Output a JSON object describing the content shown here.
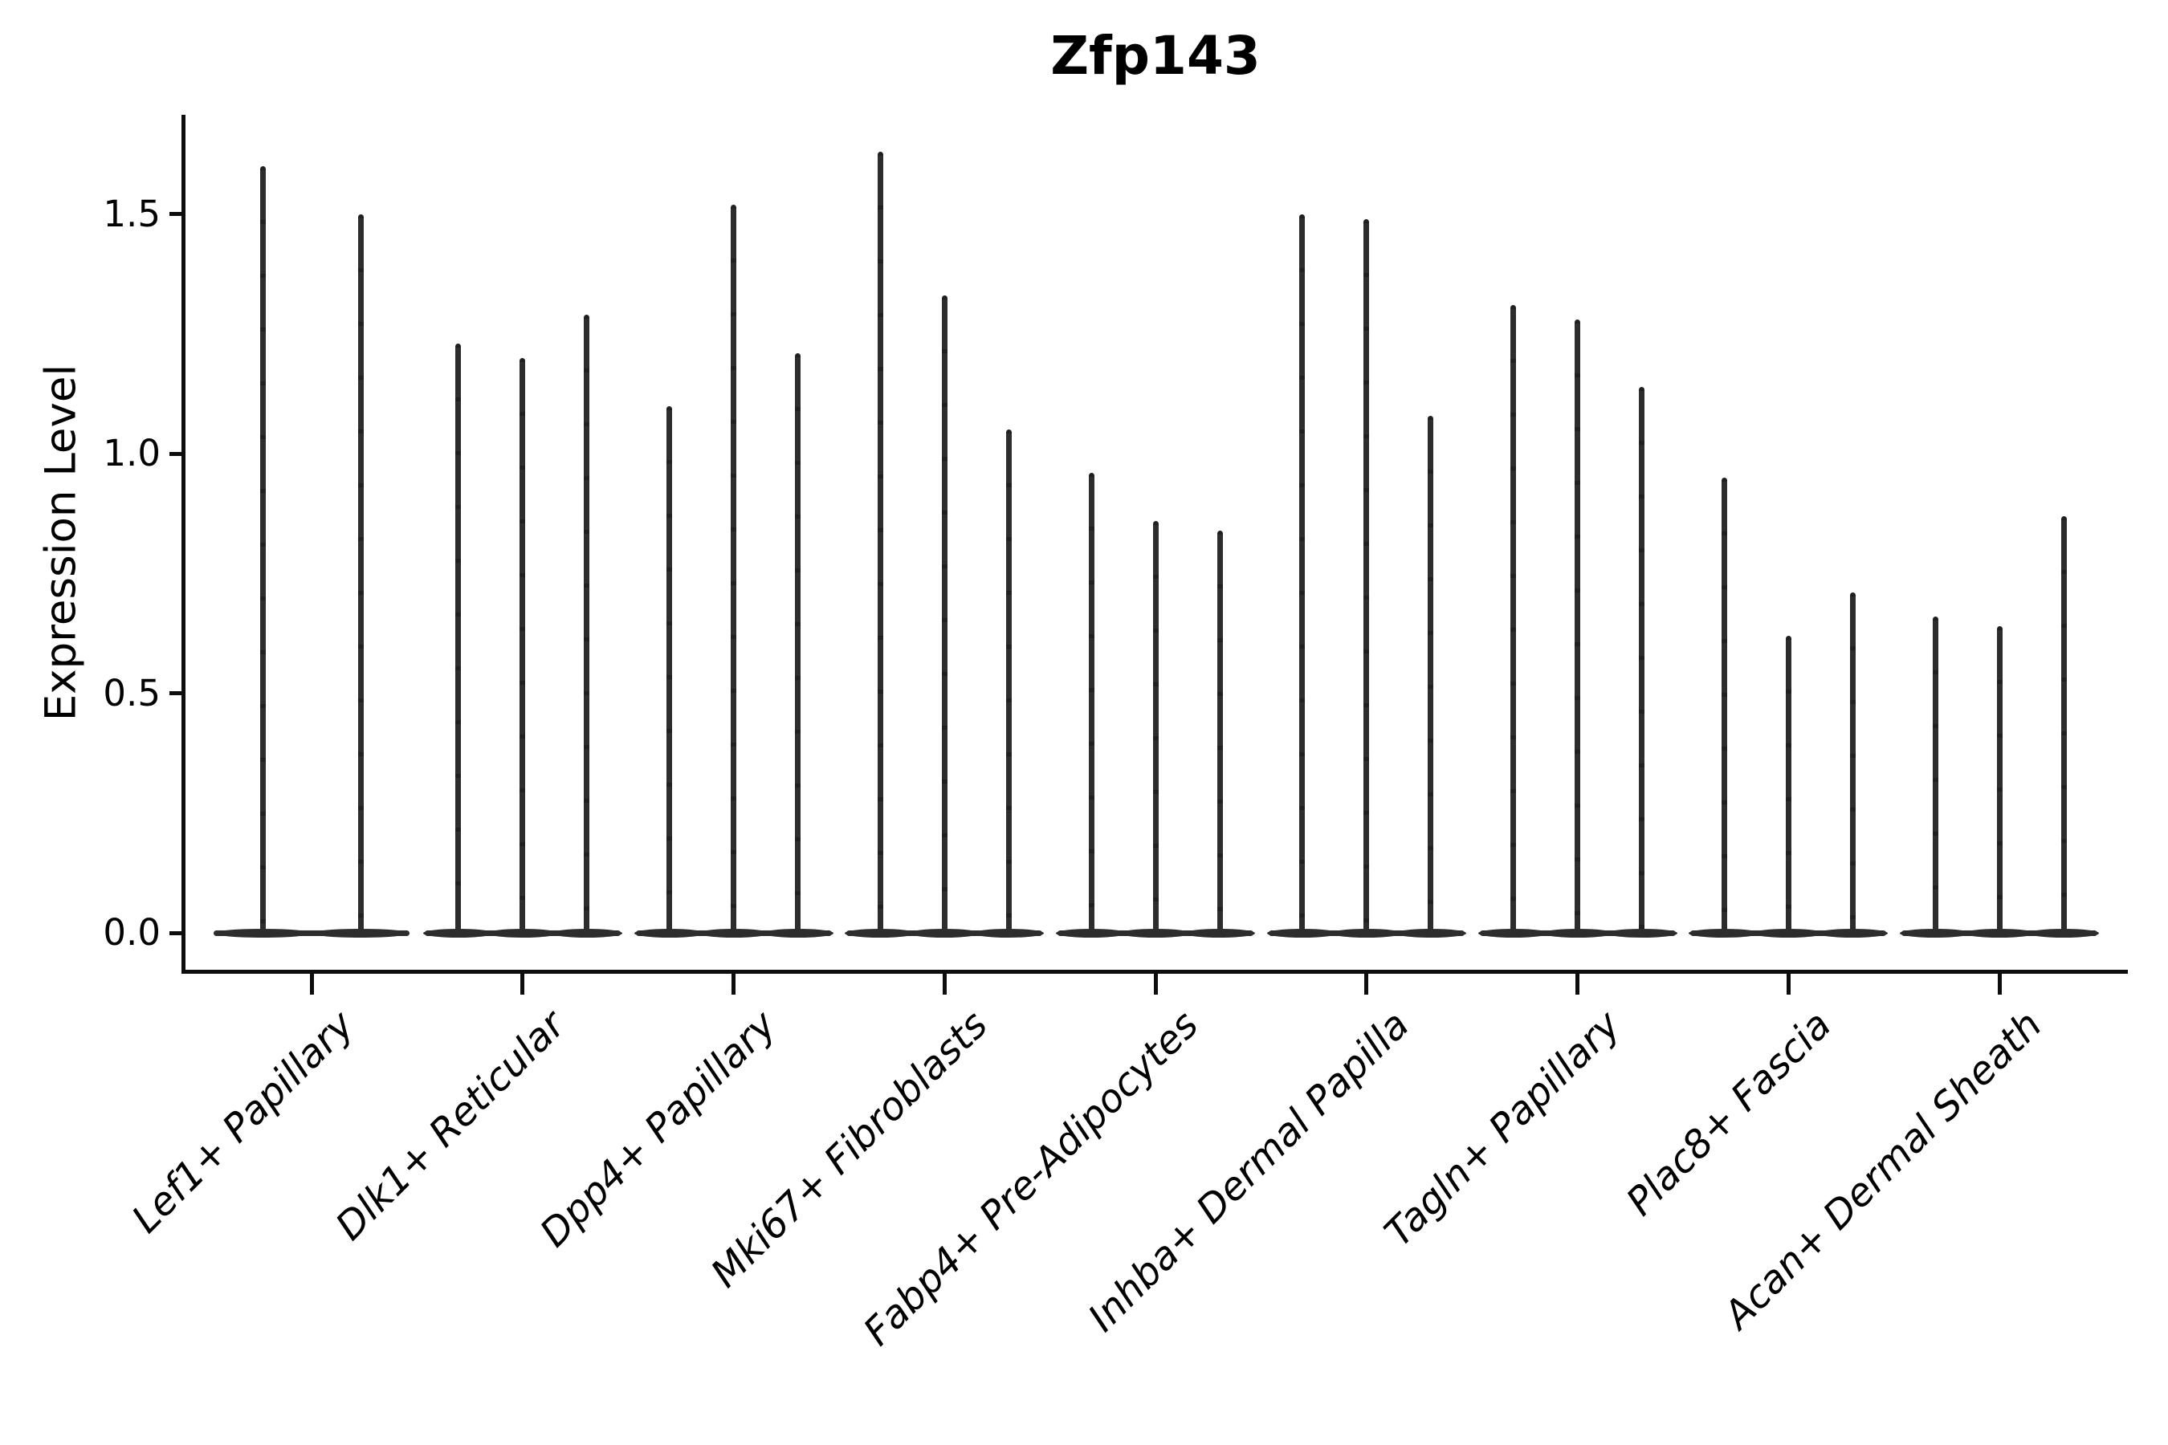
{
  "chart_data": {
    "type": "violin",
    "title": "Zfp143",
    "ylabel": "Expression Level",
    "xlabel": "",
    "grid": false,
    "legend": null,
    "ylim": [
      -0.08,
      1.71
    ],
    "yticks": [
      0.0,
      0.5,
      1.0,
      1.5
    ],
    "ytick_labels": [
      "0.0",
      "0.5",
      "1.0",
      "1.5"
    ],
    "categories": [
      "Lef1+ Papillary",
      "Dlk1+ Reticular",
      "Dpp4+ Papillary",
      "Mki67+ Fibroblasts",
      "Fabp4+ Pre-Adipocytes",
      "Inhba+ Dermal Papilla",
      "Tagln+ Papillary",
      "Plac8+ Fascia",
      "Acan+ Dermal Sheath"
    ],
    "series": [
      {
        "category": "Lef1+ Papillary",
        "violin_peaks": [
          1.6,
          1.5
        ]
      },
      {
        "category": "Dlk1+ Reticular",
        "violin_peaks": [
          1.23,
          1.2,
          1.29
        ]
      },
      {
        "category": "Dpp4+ Papillary",
        "violin_peaks": [
          1.1,
          1.52,
          1.21
        ]
      },
      {
        "category": "Mki67+ Fibroblasts",
        "violin_peaks": [
          1.63,
          1.33,
          1.05
        ]
      },
      {
        "category": "Fabp4+ Pre-Adipocytes",
        "violin_peaks": [
          0.96,
          0.86,
          0.84
        ]
      },
      {
        "category": "Inhba+ Dermal Papilla",
        "violin_peaks": [
          1.5,
          1.49,
          1.08
        ]
      },
      {
        "category": "Tagln+ Papillary",
        "violin_peaks": [
          1.31,
          1.28,
          1.14
        ]
      },
      {
        "category": "Plac8+ Fascia",
        "violin_peaks": [
          0.95,
          0.62,
          0.71
        ]
      },
      {
        "category": "Acan+ Dermal Sheath",
        "violin_peaks": [
          0.66,
          0.64,
          0.87
        ]
      }
    ],
    "style": {
      "violin_color": "#2d2d2d",
      "spine_color": "#0d0d0d",
      "text_color": "#000000",
      "background_color": "#ffffff"
    }
  }
}
